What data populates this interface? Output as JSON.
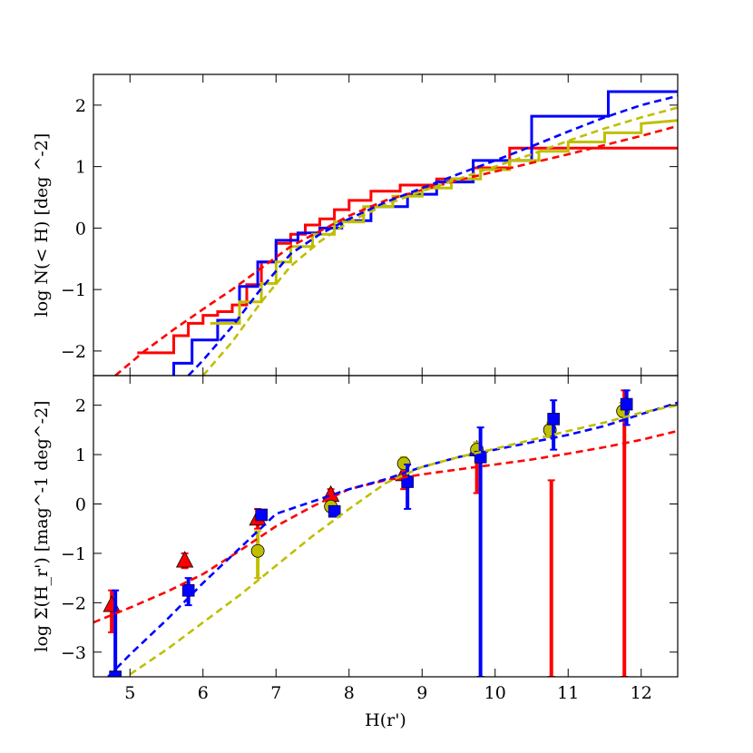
{
  "chart_data": [
    {
      "type": "line",
      "panel": "top",
      "ylabel": "log N(< H) [deg ^-2]",
      "xlim": [
        4.5,
        12.5
      ],
      "ylim": [
        -2.4,
        2.5
      ],
      "yticks": [
        -2,
        -1,
        0,
        1,
        2
      ],
      "ytick_labels": [
        "−2",
        "−1",
        "0",
        "1",
        "2"
      ],
      "series": [
        {
          "name": "red cumulative",
          "color": "#ff0000",
          "style": "step",
          "x": [
            5.1,
            5.6,
            5.6,
            5.8,
            5.8,
            6.0,
            6.0,
            6.2,
            6.2,
            6.4,
            6.4,
            6.6,
            6.6,
            6.8,
            6.8,
            7.0,
            7.0,
            7.2,
            7.2,
            7.4,
            7.4,
            7.6,
            7.6,
            7.8,
            7.8,
            8.0,
            8.0,
            8.3,
            8.3,
            8.7,
            8.7,
            9.2,
            9.2,
            9.7,
            9.7,
            10.2,
            10.2,
            12.5
          ],
          "y": [
            -2.03,
            -2.03,
            -1.75,
            -1.75,
            -1.55,
            -1.55,
            -1.42,
            -1.42,
            -1.36,
            -1.36,
            -1.25,
            -1.25,
            -0.92,
            -0.92,
            -0.55,
            -0.55,
            -0.25,
            -0.25,
            -0.1,
            -0.1,
            0.05,
            0.05,
            0.15,
            0.15,
            0.3,
            0.3,
            0.45,
            0.45,
            0.6,
            0.6,
            0.7,
            0.7,
            0.8,
            0.8,
            0.98,
            0.98,
            1.3,
            1.3
          ]
        },
        {
          "name": "blue cumulative",
          "color": "#0000ff",
          "style": "step",
          "x": [
            5.6,
            5.6,
            5.85,
            5.85,
            6.2,
            6.2,
            6.5,
            6.5,
            6.75,
            6.75,
            7.0,
            7.0,
            7.3,
            7.3,
            7.6,
            7.6,
            7.9,
            7.9,
            8.3,
            8.3,
            8.8,
            8.8,
            9.2,
            9.2,
            9.7,
            9.7,
            10.5,
            10.5,
            11.55,
            11.55,
            12.5
          ],
          "y": [
            -2.4,
            -2.2,
            -2.2,
            -1.82,
            -1.82,
            -1.5,
            -1.5,
            -0.95,
            -0.95,
            -0.55,
            -0.55,
            -0.2,
            -0.2,
            -0.08,
            -0.08,
            0.0,
            0.0,
            0.12,
            0.12,
            0.35,
            0.35,
            0.55,
            0.55,
            0.75,
            0.75,
            1.1,
            1.1,
            1.82,
            1.82,
            2.22,
            2.22
          ]
        },
        {
          "name": "yellow cumulative",
          "color": "#bfbf00",
          "style": "step",
          "x": [
            6.1,
            6.5,
            6.5,
            6.8,
            6.8,
            7.0,
            7.0,
            7.2,
            7.2,
            7.5,
            7.5,
            7.8,
            7.8,
            8.2,
            8.2,
            8.6,
            8.6,
            9.0,
            9.0,
            9.4,
            9.4,
            9.8,
            9.8,
            10.2,
            10.2,
            10.6,
            10.6,
            11.0,
            11.0,
            11.5,
            11.5,
            12.0,
            12.0,
            12.5
          ],
          "y": [
            -1.55,
            -1.55,
            -1.2,
            -1.2,
            -0.9,
            -0.9,
            -0.55,
            -0.55,
            -0.3,
            -0.3,
            -0.1,
            -0.1,
            0.1,
            0.1,
            0.35,
            0.35,
            0.52,
            0.52,
            0.65,
            0.65,
            0.8,
            0.8,
            0.95,
            0.95,
            1.1,
            1.1,
            1.25,
            1.25,
            1.4,
            1.4,
            1.55,
            1.55,
            1.7,
            1.75
          ]
        },
        {
          "name": "red fit",
          "color": "#ff0000",
          "style": "dashed",
          "x": [
            4.8,
            5.2,
            5.6,
            6.0,
            6.4,
            6.8,
            7.2,
            7.6,
            8.0,
            8.5,
            9.0,
            9.5,
            10.0,
            10.5,
            11.0,
            11.5,
            12.0,
            12.5
          ],
          "y": [
            -2.4,
            -2.0,
            -1.65,
            -1.32,
            -1.0,
            -0.65,
            -0.3,
            -0.05,
            0.2,
            0.45,
            0.62,
            0.78,
            0.92,
            1.06,
            1.2,
            1.35,
            1.5,
            1.66
          ]
        },
        {
          "name": "blue fit",
          "color": "#0000ff",
          "style": "dashed",
          "x": [
            5.8,
            6.0,
            6.4,
            6.8,
            7.2,
            7.6,
            8.0,
            8.5,
            9.0,
            9.5,
            10.0,
            10.5,
            11.0,
            11.5,
            12.0,
            12.5
          ],
          "y": [
            -2.4,
            -2.15,
            -1.6,
            -0.98,
            -0.42,
            -0.1,
            0.15,
            0.42,
            0.65,
            0.88,
            1.1,
            1.33,
            1.57,
            1.8,
            2.0,
            2.15
          ]
        },
        {
          "name": "yellow fit",
          "color": "#bfbf00",
          "style": "dashed",
          "x": [
            6.0,
            6.4,
            6.8,
            7.2,
            7.6,
            8.0,
            8.5,
            9.0,
            9.5,
            10.0,
            10.5,
            11.0,
            11.5,
            12.0,
            12.5
          ],
          "y": [
            -2.4,
            -1.85,
            -1.2,
            -0.62,
            -0.22,
            0.1,
            0.38,
            0.6,
            0.8,
            1.0,
            1.2,
            1.42,
            1.62,
            1.8,
            1.96
          ]
        }
      ]
    },
    {
      "type": "scatter",
      "panel": "bottom",
      "xlabel": "H(r')",
      "ylabel": "log Σ(H_r') [mag^-1 deg^-2]",
      "xlim": [
        4.5,
        12.5
      ],
      "ylim": [
        -3.5,
        2.6
      ],
      "xticks": [
        5,
        6,
        7,
        8,
        9,
        10,
        11,
        12
      ],
      "xtick_labels": [
        "5",
        "6",
        "7",
        "8",
        "9",
        "10",
        "11",
        "12"
      ],
      "yticks": [
        -3,
        -2,
        -1,
        0,
        1,
        2
      ],
      "ytick_labels": [
        "−3",
        "−2",
        "−1",
        "0",
        "1",
        "2"
      ],
      "series": [
        {
          "name": "red triangles",
          "color": "#ff0000",
          "marker": "triangle",
          "x": [
            4.75,
            5.75,
            6.75,
            7.75,
            8.75,
            9.75
          ],
          "y": [
            -2.05,
            -1.15,
            -0.3,
            0.18,
            0.6,
            1.1
          ],
          "yerr_low": [
            -2.6,
            -1.3,
            -0.5,
            0.05,
            0.3,
            0.22
          ],
          "yerr_high": [
            -1.75,
            -1.0,
            -0.1,
            0.3,
            0.75,
            1.25
          ]
        },
        {
          "name": "red limits",
          "color": "#ff0000",
          "marker": "none",
          "x": [
            10.77,
            11.77
          ],
          "y": [
            -3.5,
            -3.5
          ],
          "yerr_low": [
            -3.5,
            -3.5
          ],
          "yerr_high": [
            0.48,
            2.3
          ]
        },
        {
          "name": "yellow circles",
          "color": "#bfbf00",
          "marker": "circle",
          "x": [
            6.75,
            7.75,
            8.75,
            9.75,
            10.75,
            11.75
          ],
          "y": [
            -0.95,
            -0.05,
            0.82,
            1.1,
            1.5,
            1.88
          ],
          "yerr_low": [
            -1.5,
            -0.1,
            0.7,
            1.0,
            1.35,
            1.75
          ],
          "yerr_high": [
            -0.55,
            0.05,
            0.95,
            1.25,
            1.65,
            2.05
          ]
        },
        {
          "name": "blue squares",
          "color": "#0000ff",
          "marker": "square",
          "x": [
            4.8,
            5.8,
            6.8,
            7.8,
            8.8,
            9.8,
            10.8,
            11.8
          ],
          "y": [
            -3.5,
            -1.75,
            -0.22,
            -0.15,
            0.45,
            0.95,
            1.72,
            2.02
          ],
          "yerr_low": [
            -3.5,
            -2.05,
            -0.3,
            -0.25,
            -0.1,
            -3.5,
            1.1,
            1.6
          ],
          "yerr_high": [
            -1.75,
            -1.5,
            -0.15,
            -0.05,
            0.8,
            1.55,
            2.1,
            2.3
          ]
        },
        {
          "name": "red fit",
          "color": "#ff0000",
          "style": "dashed",
          "x": [
            4.5,
            5.0,
            5.5,
            6.0,
            6.5,
            7.0,
            7.5,
            8.0,
            8.5,
            9.0,
            9.5,
            10.0,
            10.5,
            11.0,
            11.5,
            12.0,
            12.5
          ],
          "y": [
            -2.4,
            -2.1,
            -1.78,
            -1.42,
            -0.95,
            -0.45,
            -0.05,
            0.3,
            0.48,
            0.6,
            0.7,
            0.8,
            0.9,
            1.02,
            1.15,
            1.3,
            1.48
          ]
        },
        {
          "name": "blue fit",
          "color": "#0000ff",
          "style": "dashed",
          "x": [
            4.7,
            5.0,
            5.5,
            6.0,
            6.5,
            7.0,
            7.5,
            8.0,
            8.5,
            9.0,
            9.5,
            10.0,
            10.5,
            11.0,
            11.5,
            12.0,
            12.5
          ],
          "y": [
            -3.5,
            -3.05,
            -2.35,
            -1.6,
            -0.9,
            -0.2,
            0.05,
            0.3,
            0.5,
            0.75,
            0.95,
            1.1,
            1.25,
            1.4,
            1.58,
            1.82,
            2.05
          ]
        },
        {
          "name": "yellow fit",
          "color": "#bfbf00",
          "style": "dashed",
          "x": [
            5.0,
            5.5,
            6.0,
            6.5,
            7.0,
            7.5,
            8.0,
            8.5,
            9.0,
            9.5,
            10.0,
            10.5,
            11.0,
            11.5,
            12.0,
            12.5
          ],
          "y": [
            -3.45,
            -2.95,
            -2.4,
            -1.85,
            -1.25,
            -0.65,
            -0.1,
            0.42,
            0.75,
            0.95,
            1.12,
            1.3,
            1.48,
            1.65,
            1.85,
            2.0
          ]
        }
      ]
    }
  ]
}
